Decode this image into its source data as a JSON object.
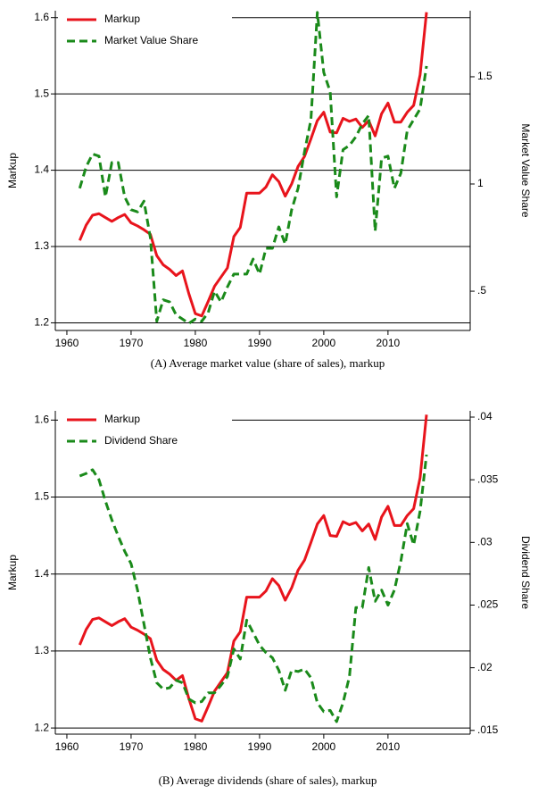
{
  "chart_data": [
    {
      "type": "line",
      "caption": "(A) Average market value (share of sales), markup",
      "ylabel": "Markup",
      "y2label": "Market Value Share",
      "legend": "top-left",
      "grid": true,
      "x": [
        1962,
        1963,
        1964,
        1965,
        1966,
        1967,
        1968,
        1969,
        1970,
        1971,
        1972,
        1973,
        1974,
        1975,
        1976,
        1977,
        1978,
        1979,
        1980,
        1981,
        1982,
        1983,
        1984,
        1985,
        1986,
        1987,
        1988,
        1989,
        1990,
        1991,
        1992,
        1993,
        1994,
        1995,
        1996,
        1997,
        1998,
        1999,
        2000,
        2001,
        2002,
        2003,
        2004,
        2005,
        2006,
        2007,
        2008,
        2009,
        2010,
        2011,
        2012,
        2013,
        2014,
        2015,
        2016
      ],
      "xlim": [
        1958.2,
        2022.8
      ],
      "xticks": [
        1960,
        1970,
        1980,
        1990,
        2000,
        2010
      ],
      "ylim": [
        1.19,
        1.609
      ],
      "yticks": [
        1.2,
        1.3,
        1.4,
        1.5,
        1.6
      ],
      "y2lim": [
        0.317,
        1.808
      ],
      "y2ticks": [
        {
          "value": 0.5,
          "label": ".5"
        },
        1,
        1.5
      ],
      "series": [
        {
          "name": "Markup",
          "color": "#e8141c",
          "style": "solid",
          "axis": "y",
          "values": [
            1.308,
            1.328,
            1.341,
            1.343,
            1.338,
            1.333,
            1.338,
            1.342,
            1.331,
            1.327,
            1.322,
            1.316,
            1.288,
            1.276,
            1.27,
            1.262,
            1.268,
            1.238,
            1.212,
            1.209,
            1.228,
            1.248,
            1.26,
            1.272,
            1.313,
            1.325,
            1.37,
            1.37,
            1.37,
            1.378,
            1.394,
            1.385,
            1.366,
            1.382,
            1.405,
            1.418,
            1.441,
            1.465,
            1.476,
            1.45,
            1.449,
            1.468,
            1.464,
            1.467,
            1.456,
            1.465,
            1.445,
            1.474,
            1.488,
            1.463,
            1.463,
            1.476,
            1.485,
            1.525,
            1.607
          ]
        },
        {
          "name": "Market Value Share",
          "color": "#1a8a1a",
          "style": "dashed",
          "axis": "y2",
          "values": [
            0.98,
            1.08,
            1.14,
            1.13,
            0.94,
            1.1,
            1.1,
            0.94,
            0.88,
            0.87,
            0.92,
            0.75,
            0.36,
            0.46,
            0.45,
            0.39,
            0.37,
            0.35,
            0.37,
            0.36,
            0.4,
            0.5,
            0.45,
            0.52,
            0.58,
            0.58,
            0.58,
            0.65,
            0.58,
            0.7,
            0.7,
            0.8,
            0.72,
            0.88,
            0.98,
            1.15,
            1.3,
            1.8,
            1.52,
            1.43,
            0.94,
            1.16,
            1.18,
            1.22,
            1.28,
            1.32,
            0.78,
            1.12,
            1.13,
            0.98,
            1.05,
            1.25,
            1.3,
            1.35,
            1.55
          ]
        }
      ]
    },
    {
      "type": "line",
      "caption": "(B) Average dividends (share of sales), markup",
      "ylabel": "Markup",
      "y2label": "Dividend Share",
      "legend": "top-left",
      "grid": true,
      "x": [
        1962,
        1963,
        1964,
        1965,
        1966,
        1967,
        1968,
        1969,
        1970,
        1971,
        1972,
        1973,
        1974,
        1975,
        1976,
        1977,
        1978,
        1979,
        1980,
        1981,
        1982,
        1983,
        1984,
        1985,
        1986,
        1987,
        1988,
        1989,
        1990,
        1991,
        1992,
        1993,
        1994,
        1995,
        1996,
        1997,
        1998,
        1999,
        2000,
        2001,
        2002,
        2003,
        2004,
        2005,
        2006,
        2007,
        2008,
        2009,
        2010,
        2011,
        2012,
        2013,
        2014,
        2015,
        2016
      ],
      "xlim": [
        1958.2,
        2022.8
      ],
      "xticks": [
        1960,
        1970,
        1980,
        1990,
        2000,
        2010
      ],
      "ylim": [
        1.192,
        1.612
      ],
      "yticks": [
        1.2,
        1.3,
        1.4,
        1.5,
        1.6
      ],
      "y2lim": [
        0.0147,
        0.0405
      ],
      "y2ticks": [
        {
          "value": 0.015,
          "label": ".015"
        },
        {
          "value": 0.02,
          "label": ".02"
        },
        {
          "value": 0.025,
          "label": ".025"
        },
        {
          "value": 0.03,
          "label": ".03"
        },
        {
          "value": 0.035,
          "label": ".035"
        },
        {
          "value": 0.04,
          "label": ".04"
        }
      ],
      "series": [
        {
          "name": "Markup",
          "color": "#e8141c",
          "style": "solid",
          "axis": "y",
          "values": [
            1.308,
            1.328,
            1.341,
            1.343,
            1.338,
            1.333,
            1.338,
            1.342,
            1.331,
            1.327,
            1.322,
            1.316,
            1.288,
            1.276,
            1.27,
            1.262,
            1.268,
            1.238,
            1.212,
            1.209,
            1.228,
            1.248,
            1.26,
            1.272,
            1.313,
            1.325,
            1.37,
            1.37,
            1.37,
            1.378,
            1.394,
            1.385,
            1.366,
            1.382,
            1.405,
            1.418,
            1.441,
            1.465,
            1.476,
            1.45,
            1.449,
            1.468,
            1.464,
            1.467,
            1.456,
            1.465,
            1.445,
            1.474,
            1.488,
            1.463,
            1.463,
            1.476,
            1.485,
            1.525,
            1.607
          ]
        },
        {
          "name": "Dividend Share",
          "color": "#1a8a1a",
          "style": "dashed",
          "axis": "y2",
          "values": [
            0.0353,
            0.0355,
            0.0358,
            0.035,
            0.0333,
            0.0318,
            0.0305,
            0.0293,
            0.0283,
            0.0262,
            0.0235,
            0.0208,
            0.0188,
            0.0183,
            0.0184,
            0.019,
            0.0188,
            0.0175,
            0.0172,
            0.0173,
            0.018,
            0.018,
            0.0186,
            0.0193,
            0.0215,
            0.0207,
            0.0238,
            0.0228,
            0.0218,
            0.0212,
            0.0208,
            0.0198,
            0.0182,
            0.0198,
            0.0197,
            0.0199,
            0.0192,
            0.0172,
            0.0165,
            0.0166,
            0.0157,
            0.0172,
            0.0193,
            0.0248,
            0.0248,
            0.028,
            0.0253,
            0.0262,
            0.025,
            0.0262,
            0.0285,
            0.0315,
            0.0298,
            0.0325,
            0.037
          ]
        }
      ]
    }
  ]
}
